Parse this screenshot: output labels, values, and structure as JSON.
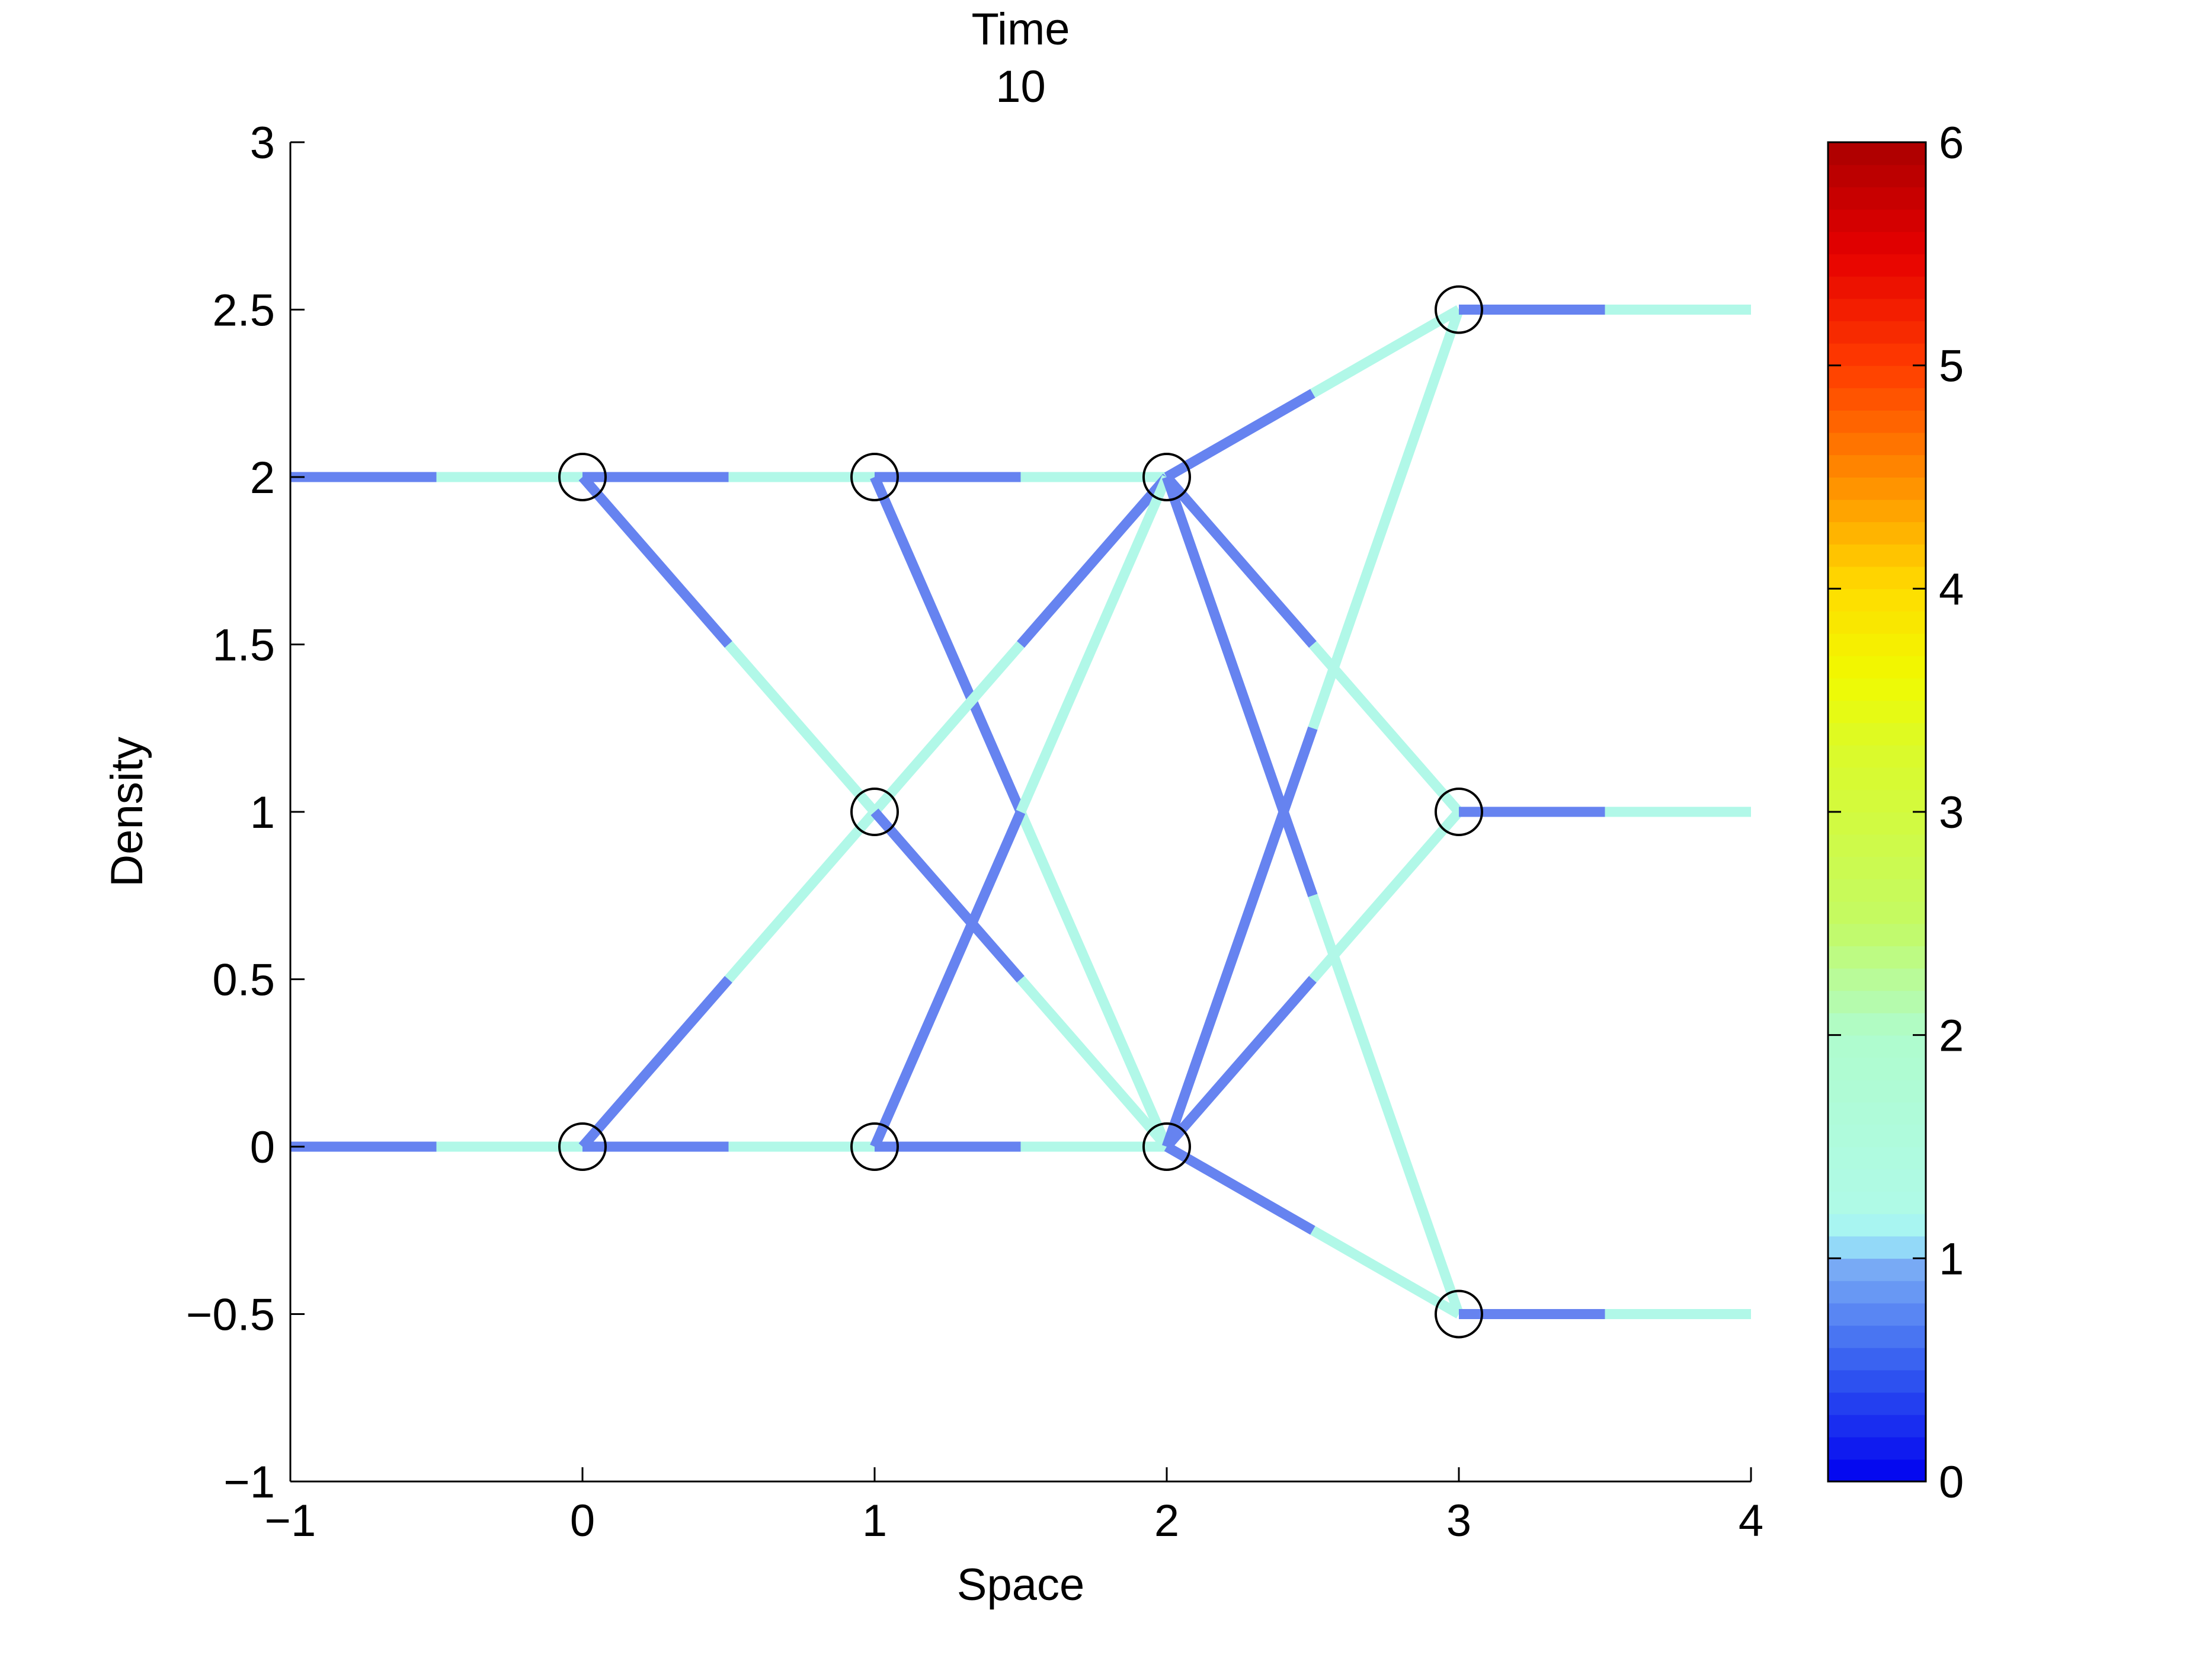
{
  "chart_data": {
    "type": "line",
    "title": [
      "Time",
      "10"
    ],
    "xlabel": "Space",
    "ylabel": "Density",
    "xlim": [
      -1,
      4
    ],
    "ylim": [
      -1,
      3
    ],
    "xticks": [
      -1,
      0,
      1,
      2,
      3,
      4
    ],
    "yticks": [
      -1,
      -0.5,
      0,
      0.5,
      1,
      1.5,
      2,
      2.5,
      3
    ],
    "xtick_labels": [
      "−1",
      "0",
      "1",
      "2",
      "3",
      "4"
    ],
    "ytick_labels": [
      "−1",
      "−0.5",
      "0",
      "0.5",
      "1",
      "1.5",
      "2",
      "2.5",
      "3"
    ],
    "grid": false,
    "colors": {
      "blue": "#6683f0",
      "cyan": "#b1f8e8",
      "marker": "#000000"
    },
    "nodes": [
      {
        "x": 0,
        "y": 2
      },
      {
        "x": 0,
        "y": 0
      },
      {
        "x": 1,
        "y": 2
      },
      {
        "x": 1,
        "y": 1
      },
      {
        "x": 1,
        "y": 0
      },
      {
        "x": 2,
        "y": 2
      },
      {
        "x": 2,
        "y": 0
      },
      {
        "x": 3,
        "y": 2.5
      },
      {
        "x": 3,
        "y": 1
      },
      {
        "x": 3,
        "y": -0.5
      }
    ],
    "segments": [
      {
        "x": [
          -1,
          -0.5
        ],
        "y": [
          2,
          2
        ],
        "color": "blue"
      },
      {
        "x": [
          -0.5,
          0
        ],
        "y": [
          2,
          2
        ],
        "color": "cyan"
      },
      {
        "x": [
          -1,
          -0.5
        ],
        "y": [
          0,
          0
        ],
        "color": "blue"
      },
      {
        "x": [
          -0.5,
          0
        ],
        "y": [
          0,
          0
        ],
        "color": "cyan"
      },
      {
        "x": [
          0,
          0.5
        ],
        "y": [
          2,
          2
        ],
        "color": "blue"
      },
      {
        "x": [
          0.5,
          1
        ],
        "y": [
          2,
          2
        ],
        "color": "cyan"
      },
      {
        "x": [
          0,
          0.5
        ],
        "y": [
          2,
          1.5
        ],
        "color": "blue"
      },
      {
        "x": [
          0.5,
          1
        ],
        "y": [
          1.5,
          1
        ],
        "color": "cyan"
      },
      {
        "x": [
          0,
          0.5
        ],
        "y": [
          0,
          0.5
        ],
        "color": "blue"
      },
      {
        "x": [
          0.5,
          1
        ],
        "y": [
          0.5,
          1
        ],
        "color": "cyan"
      },
      {
        "x": [
          0,
          0.5
        ],
        "y": [
          0,
          0
        ],
        "color": "blue"
      },
      {
        "x": [
          0.5,
          1
        ],
        "y": [
          0,
          0
        ],
        "color": "cyan"
      },
      {
        "x": [
          1,
          1.5
        ],
        "y": [
          2,
          2
        ],
        "color": "blue"
      },
      {
        "x": [
          1.5,
          2
        ],
        "y": [
          2,
          2
        ],
        "color": "cyan"
      },
      {
        "x": [
          1,
          1.5
        ],
        "y": [
          2,
          1
        ],
        "color": "blue"
      },
      {
        "x": [
          1.5,
          2
        ],
        "y": [
          1,
          0
        ],
        "color": "cyan"
      },
      {
        "x": [
          1,
          1.5
        ],
        "y": [
          1,
          1.5
        ],
        "color": "cyan"
      },
      {
        "x": [
          1.5,
          2
        ],
        "y": [
          1.5,
          2
        ],
        "color": "blue"
      },
      {
        "x": [
          1,
          1.5
        ],
        "y": [
          1,
          0.5
        ],
        "color": "blue"
      },
      {
        "x": [
          1.5,
          2
        ],
        "y": [
          0.5,
          0
        ],
        "color": "cyan"
      },
      {
        "x": [
          1,
          1.5
        ],
        "y": [
          0,
          1
        ],
        "color": "blue"
      },
      {
        "x": [
          1.5,
          2
        ],
        "y": [
          1,
          2
        ],
        "color": "cyan"
      },
      {
        "x": [
          1,
          1.5
        ],
        "y": [
          0,
          0
        ],
        "color": "blue"
      },
      {
        "x": [
          1.5,
          2
        ],
        "y": [
          0,
          0
        ],
        "color": "cyan"
      },
      {
        "x": [
          2,
          2.5
        ],
        "y": [
          2,
          2.25
        ],
        "color": "blue"
      },
      {
        "x": [
          2.5,
          3
        ],
        "y": [
          2.25,
          2.5
        ],
        "color": "cyan"
      },
      {
        "x": [
          2,
          2.5
        ],
        "y": [
          2,
          1.5
        ],
        "color": "blue"
      },
      {
        "x": [
          2.5,
          3
        ],
        "y": [
          1.5,
          1
        ],
        "color": "cyan"
      },
      {
        "x": [
          2,
          2.5
        ],
        "y": [
          2,
          0.75
        ],
        "color": "blue"
      },
      {
        "x": [
          2.5,
          3
        ],
        "y": [
          0.75,
          -0.5
        ],
        "color": "cyan"
      },
      {
        "x": [
          2,
          2.5
        ],
        "y": [
          0,
          1.25
        ],
        "color": "blue"
      },
      {
        "x": [
          2.5,
          3
        ],
        "y": [
          1.25,
          2.5
        ],
        "color": "cyan"
      },
      {
        "x": [
          2,
          2.5
        ],
        "y": [
          0,
          0.5
        ],
        "color": "blue"
      },
      {
        "x": [
          2.5,
          3
        ],
        "y": [
          0.5,
          1
        ],
        "color": "cyan"
      },
      {
        "x": [
          2,
          2.5
        ],
        "y": [
          0,
          -0.25
        ],
        "color": "blue"
      },
      {
        "x": [
          2.5,
          3
        ],
        "y": [
          -0.25,
          -0.5
        ],
        "color": "cyan"
      },
      {
        "x": [
          3,
          3.5
        ],
        "y": [
          2.5,
          2.5
        ],
        "color": "blue"
      },
      {
        "x": [
          3.5,
          4
        ],
        "y": [
          2.5,
          2.5
        ],
        "color": "cyan"
      },
      {
        "x": [
          3,
          3.5
        ],
        "y": [
          1,
          1
        ],
        "color": "blue"
      },
      {
        "x": [
          3.5,
          4
        ],
        "y": [
          1,
          1
        ],
        "color": "cyan"
      },
      {
        "x": [
          3,
          3.5
        ],
        "y": [
          -0.5,
          -0.5
        ],
        "color": "blue"
      },
      {
        "x": [
          3.5,
          4
        ],
        "y": [
          -0.5,
          -0.5
        ],
        "color": "cyan"
      }
    ],
    "colorbar": {
      "range": [
        0,
        6
      ],
      "ticks": [
        0,
        1,
        2,
        3,
        4,
        5,
        6
      ],
      "tick_labels": [
        "0",
        "1",
        "2",
        "3",
        "4",
        "5",
        "6"
      ],
      "colormap": "jet-with-cyan-to-mint-band"
    }
  }
}
